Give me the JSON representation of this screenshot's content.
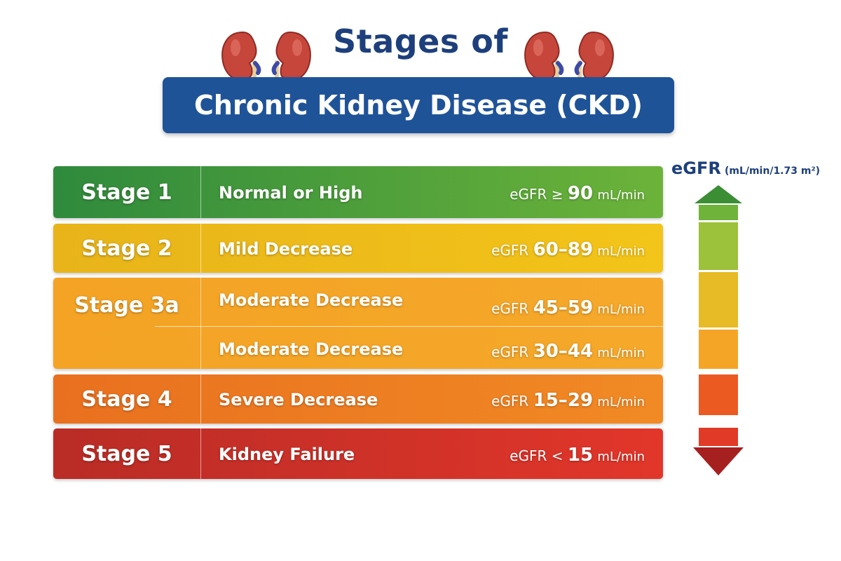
{
  "title": {
    "line1": "Stages of",
    "line2": "Chronic Kidney Disease (CKD)"
  },
  "stages": [
    {
      "label": "Stage 1",
      "description": "Normal or High",
      "range_prefix": "eGFR ≥",
      "range_value": "90",
      "range_unit": "mL/min",
      "colors": [
        "#2f8a3c",
        "#6cb33a"
      ]
    },
    {
      "label": "Stage 2",
      "description": "Mild Decrease",
      "range_prefix": "eGFR",
      "range_value": "60–89",
      "range_unit": "mL/min",
      "colors": [
        "#e8b41a",
        "#f3c419"
      ]
    },
    {
      "label": "Stage 3a",
      "description": "Moderate Decrease",
      "range_prefix": "eGFR",
      "range_value": "45–59",
      "range_unit": "mL/min",
      "colors": [
        "#f4a324",
        "#f5a82a"
      ]
    },
    {
      "label": "",
      "description": "Moderate Decrease",
      "range_prefix": "eGFR",
      "range_value": "30–44",
      "range_unit": "mL/min",
      "colors": [
        "#f4a324",
        "#f5a82a"
      ]
    },
    {
      "label": "Stage 4",
      "description": "Severe Decrease",
      "range_prefix": "eGFR",
      "range_value": "15–29",
      "range_unit": "mL/min",
      "colors": [
        "#e9701f",
        "#f18a24"
      ]
    },
    {
      "label": "Stage 5",
      "description": "Kidney Failure",
      "range_prefix": "eGFR <",
      "range_value": "15",
      "range_unit": "mL/min",
      "colors": [
        "#b92c26",
        "#e2362a"
      ]
    }
  ],
  "scale": {
    "title": "eGFR",
    "unit": "(mL/min/1.73 m²)",
    "colors": [
      "#3c8e35",
      "#6fb33b",
      "#9cc13a",
      "#e7bb26",
      "#f5a526",
      "#eb5a21",
      "#e13a26",
      "#a72020"
    ]
  }
}
